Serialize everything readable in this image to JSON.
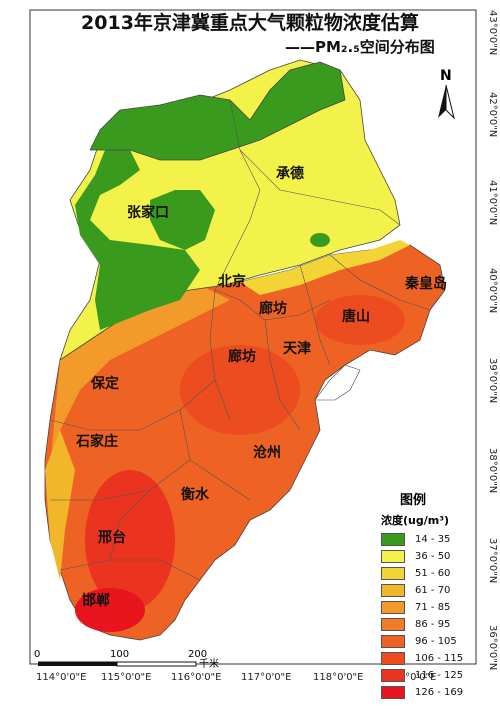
{
  "map": {
    "title": "2013年京津冀重点大气颗粒物浓度估算",
    "subtitle": "——PM₂.₅空间分布图",
    "north_label": "N",
    "cities": [
      {
        "name": "承德"
      },
      {
        "name": "张家口"
      },
      {
        "name": "北京"
      },
      {
        "name": "廊坊"
      },
      {
        "name": "秦皇岛"
      },
      {
        "name": "唐山"
      },
      {
        "name": "天津"
      },
      {
        "name": "廊坊"
      },
      {
        "name": "保定"
      },
      {
        "name": "石家庄"
      },
      {
        "name": "沧州"
      },
      {
        "name": "衡水"
      },
      {
        "name": "邢台"
      },
      {
        "name": "邯郸"
      }
    ],
    "lat_labels": [
      "43°0'0\"N",
      "42°0'0\"N",
      "41°0'0\"N",
      "40°0'0\"N",
      "39°0'0\"N",
      "38°0'0\"N",
      "37°0'0\"N",
      "36°0'0\"N"
    ],
    "lon_labels": [
      "114°0'0\"E",
      "115°0'0\"E",
      "116°0'0\"E",
      "117°0'0\"E",
      "118°0'0\"E",
      "119°0'0\"E"
    ],
    "scale": {
      "ticks": [
        "0",
        "100",
        "200"
      ],
      "unit": "千米"
    }
  },
  "legend": {
    "title": "图例",
    "subtitle": "浓度(ug/m³)",
    "items": [
      {
        "label": "14 - 35",
        "color": "#3a9a1e"
      },
      {
        "label": "36 - 50",
        "color": "#f2f24a"
      },
      {
        "label": "51 - 60",
        "color": "#f2d535"
      },
      {
        "label": "61 - 70",
        "color": "#f2b62a"
      },
      {
        "label": "71 - 85",
        "color": "#f29a2a"
      },
      {
        "label": "86 - 95",
        "color": "#f07c28"
      },
      {
        "label": "96 - 105",
        "color": "#ee6224"
      },
      {
        "label": "106 - 115",
        "color": "#ec4c20"
      },
      {
        "label": "116 - 125",
        "color": "#ea3420"
      },
      {
        "label": "126 - 169",
        "color": "#e8141e"
      }
    ]
  }
}
